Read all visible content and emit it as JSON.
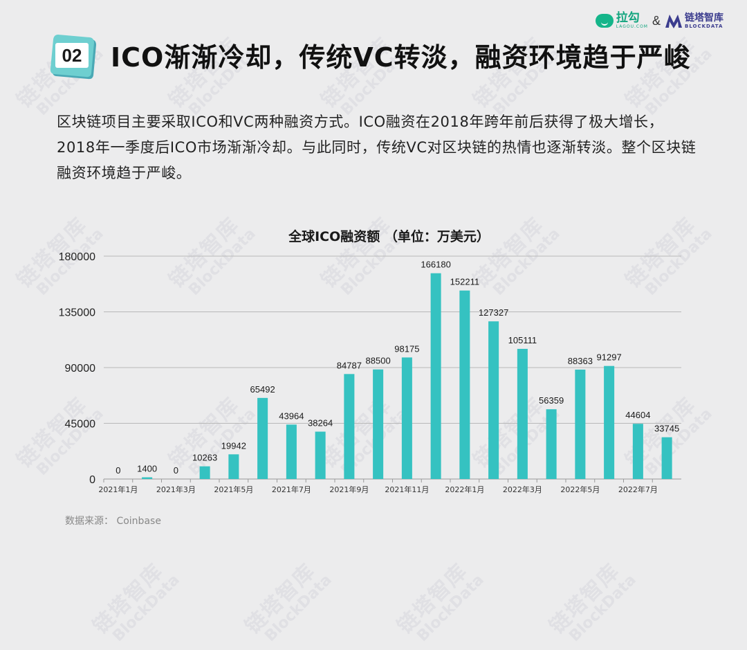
{
  "header": {
    "section_number": "02",
    "title": "ICO渐渐冷却，传统VC转淡，融资环境趋于严峻"
  },
  "logos": {
    "lagou_cn": "拉勾",
    "lagou_en": "LAGOU.COM",
    "ampersand": "&",
    "blockdata_cn": "链塔智库",
    "blockdata_en": "BLOCKDATA"
  },
  "intro_text": "区块链项目主要采取ICO和VC两种融资方式。ICO融资在2018年跨年前后获得了极大增长，2018年一季度后ICO市场渐渐冷却。与此同时，传统VC对区块链的热情也逐渐转淡。整个区块链融资环境趋于严峻。",
  "watermark": {
    "cn": "链塔智库",
    "en": "BlockData"
  },
  "source": "数据来源：  Coinbase",
  "colors": {
    "background": "#ececed",
    "bar": "#35c2c1",
    "badge_fill": "#6ecfd0",
    "badge_shadow": "#4aa9b5",
    "gridline": "#b8b8b8"
  },
  "chart_data": {
    "type": "bar",
    "title": "全球ICO融资额  （单位：万美元）",
    "categories": [
      "2021年1月",
      "",
      "2021年3月",
      "",
      "2021年5月",
      "",
      "2021年7月",
      "",
      "2021年9月",
      "",
      "2021年11月",
      "",
      "2022年1月",
      "",
      "2022年3月",
      "",
      "2022年5月",
      "",
      "2022年7月",
      ""
    ],
    "values": [
      0,
      1400,
      0,
      10263,
      19942,
      65492,
      43964,
      38264,
      84787,
      88500,
      98175,
      166180,
      152211,
      127327,
      105111,
      56359,
      88363,
      91297,
      44604,
      33745
    ],
    "data_labels": [
      "0",
      "1400",
      "0",
      "10263",
      "19942",
      "65492",
      "43964",
      "38264",
      "84787",
      "88500",
      "98175",
      "166180",
      "152211",
      "127327",
      "105111",
      "56359",
      "88363",
      "91297",
      "44604",
      "33745"
    ],
    "ylim": [
      0,
      180000
    ],
    "yticks": [
      0,
      45000,
      90000,
      135000,
      180000
    ],
    "ytick_labels": [
      "0",
      "45000",
      "90000",
      "135000",
      "180000"
    ],
    "grid": true,
    "legend": "none"
  }
}
